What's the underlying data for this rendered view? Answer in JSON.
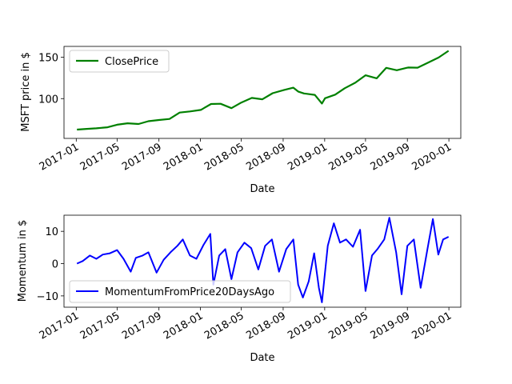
{
  "chart_data": [
    {
      "type": "line",
      "xlabel": "Date",
      "ylabel": "MSFT price in $",
      "xlim": [
        "2016-11-26",
        "2020-02-05"
      ],
      "ylim": [
        52,
        163
      ],
      "yticks": [
        100,
        150
      ],
      "xticks": [
        "2017-01",
        "2017-05",
        "2017-09",
        "2018-01",
        "2018-05",
        "2018-09",
        "2019-01",
        "2019-05",
        "2019-09",
        "2020-01"
      ],
      "grid": false,
      "legend_position": "upper-left",
      "series": [
        {
          "name": "ClosePrice",
          "color": "#008000",
          "x": [
            "2017-01-03",
            "2017-02-01",
            "2017-03-01",
            "2017-04-03",
            "2017-05-01",
            "2017-06-01",
            "2017-07-03",
            "2017-08-01",
            "2017-09-01",
            "2017-10-02",
            "2017-11-01",
            "2017-12-01",
            "2018-01-02",
            "2018-02-01",
            "2018-03-01",
            "2018-04-02",
            "2018-05-01",
            "2018-06-01",
            "2018-07-02",
            "2018-08-01",
            "2018-09-04",
            "2018-10-01",
            "2018-10-15",
            "2018-11-01",
            "2018-12-03",
            "2018-12-24",
            "2019-01-02",
            "2019-02-01",
            "2019-03-01",
            "2019-04-01",
            "2019-05-01",
            "2019-06-03",
            "2019-07-01",
            "2019-08-01",
            "2019-09-03",
            "2019-10-01",
            "2019-11-01",
            "2019-12-02",
            "2019-12-31"
          ],
          "y": [
            62.6,
            63.5,
            64.2,
            65.4,
            68.5,
            70.2,
            69.4,
            72.8,
            74.2,
            75.5,
            83.2,
            84.5,
            86.4,
            93.5,
            93.8,
            88.5,
            95.2,
            100.8,
            99.2,
            106.5,
            110.5,
            113.2,
            108.6,
            106.2,
            104.5,
            94.1,
            100.5,
            104.8,
            112.5,
            119.2,
            128.2,
            124.5,
            137.1,
            134.2,
            137.5,
            137.3,
            143.5,
            149.6,
            157.7
          ]
        }
      ]
    },
    {
      "type": "line",
      "xlabel": "Date",
      "ylabel": "Momentum in $",
      "xlim": [
        "2016-11-26",
        "2020-02-05"
      ],
      "ylim": [
        -13.5,
        15
      ],
      "yticks": [
        -10,
        0,
        10
      ],
      "xticks": [
        "2017-01",
        "2017-05",
        "2017-09",
        "2018-01",
        "2018-05",
        "2018-09",
        "2019-01",
        "2019-05",
        "2019-09",
        "2020-01"
      ],
      "grid": false,
      "legend_position": "lower-left",
      "series": [
        {
          "name": "MomentumFromPrice20DaysAgo",
          "color": "#0000ff",
          "x": [
            "2017-01-03",
            "2017-01-20",
            "2017-02-10",
            "2017-03-01",
            "2017-03-20",
            "2017-04-10",
            "2017-05-01",
            "2017-05-20",
            "2017-06-10",
            "2017-06-25",
            "2017-07-15",
            "2017-08-01",
            "2017-08-25",
            "2017-09-15",
            "2017-10-05",
            "2017-10-25",
            "2017-11-10",
            "2017-12-01",
            "2017-12-20",
            "2018-01-10",
            "2018-01-30",
            "2018-02-08",
            "2018-02-25",
            "2018-03-15",
            "2018-04-02",
            "2018-04-20",
            "2018-05-10",
            "2018-05-30",
            "2018-06-20",
            "2018-07-10",
            "2018-07-30",
            "2018-08-20",
            "2018-09-10",
            "2018-10-01",
            "2018-10-15",
            "2018-10-29",
            "2018-11-15",
            "2018-12-01",
            "2018-12-15",
            "2018-12-24",
            "2019-01-10",
            "2019-01-28",
            "2019-02-15",
            "2019-03-05",
            "2019-03-25",
            "2019-04-15",
            "2019-05-01",
            "2019-05-20",
            "2019-06-05",
            "2019-06-25",
            "2019-07-10",
            "2019-07-30",
            "2019-08-15",
            "2019-09-01",
            "2019-09-20",
            "2019-10-10",
            "2019-10-30",
            "2019-11-15",
            "2019-12-01",
            "2019-12-15",
            "2019-12-31"
          ],
          "y": [
            0,
            0.8,
            2.5,
            1.5,
            2.8,
            3.2,
            4.2,
            1.5,
            -2.5,
            1.8,
            2.5,
            3.5,
            -2.8,
            1.2,
            3.5,
            5.5,
            7.5,
            2.5,
            1.5,
            5.8,
            9.2,
            -6.5,
            2.5,
            4.5,
            -4.8,
            3.5,
            6.5,
            4.8,
            -1.8,
            5.5,
            7.5,
            -2.5,
            4.5,
            7.5,
            -6.5,
            -10.5,
            -5.5,
            3.2,
            -7.5,
            -12,
            5.5,
            12.5,
            6.5,
            7.5,
            5.2,
            10.5,
            -8.5,
            2.5,
            4.5,
            7.5,
            14.2,
            3.5,
            -9.5,
            5.5,
            7.5,
            -7.5,
            4.5,
            13.8,
            2.8,
            7.5,
            8.3
          ]
        }
      ]
    }
  ]
}
